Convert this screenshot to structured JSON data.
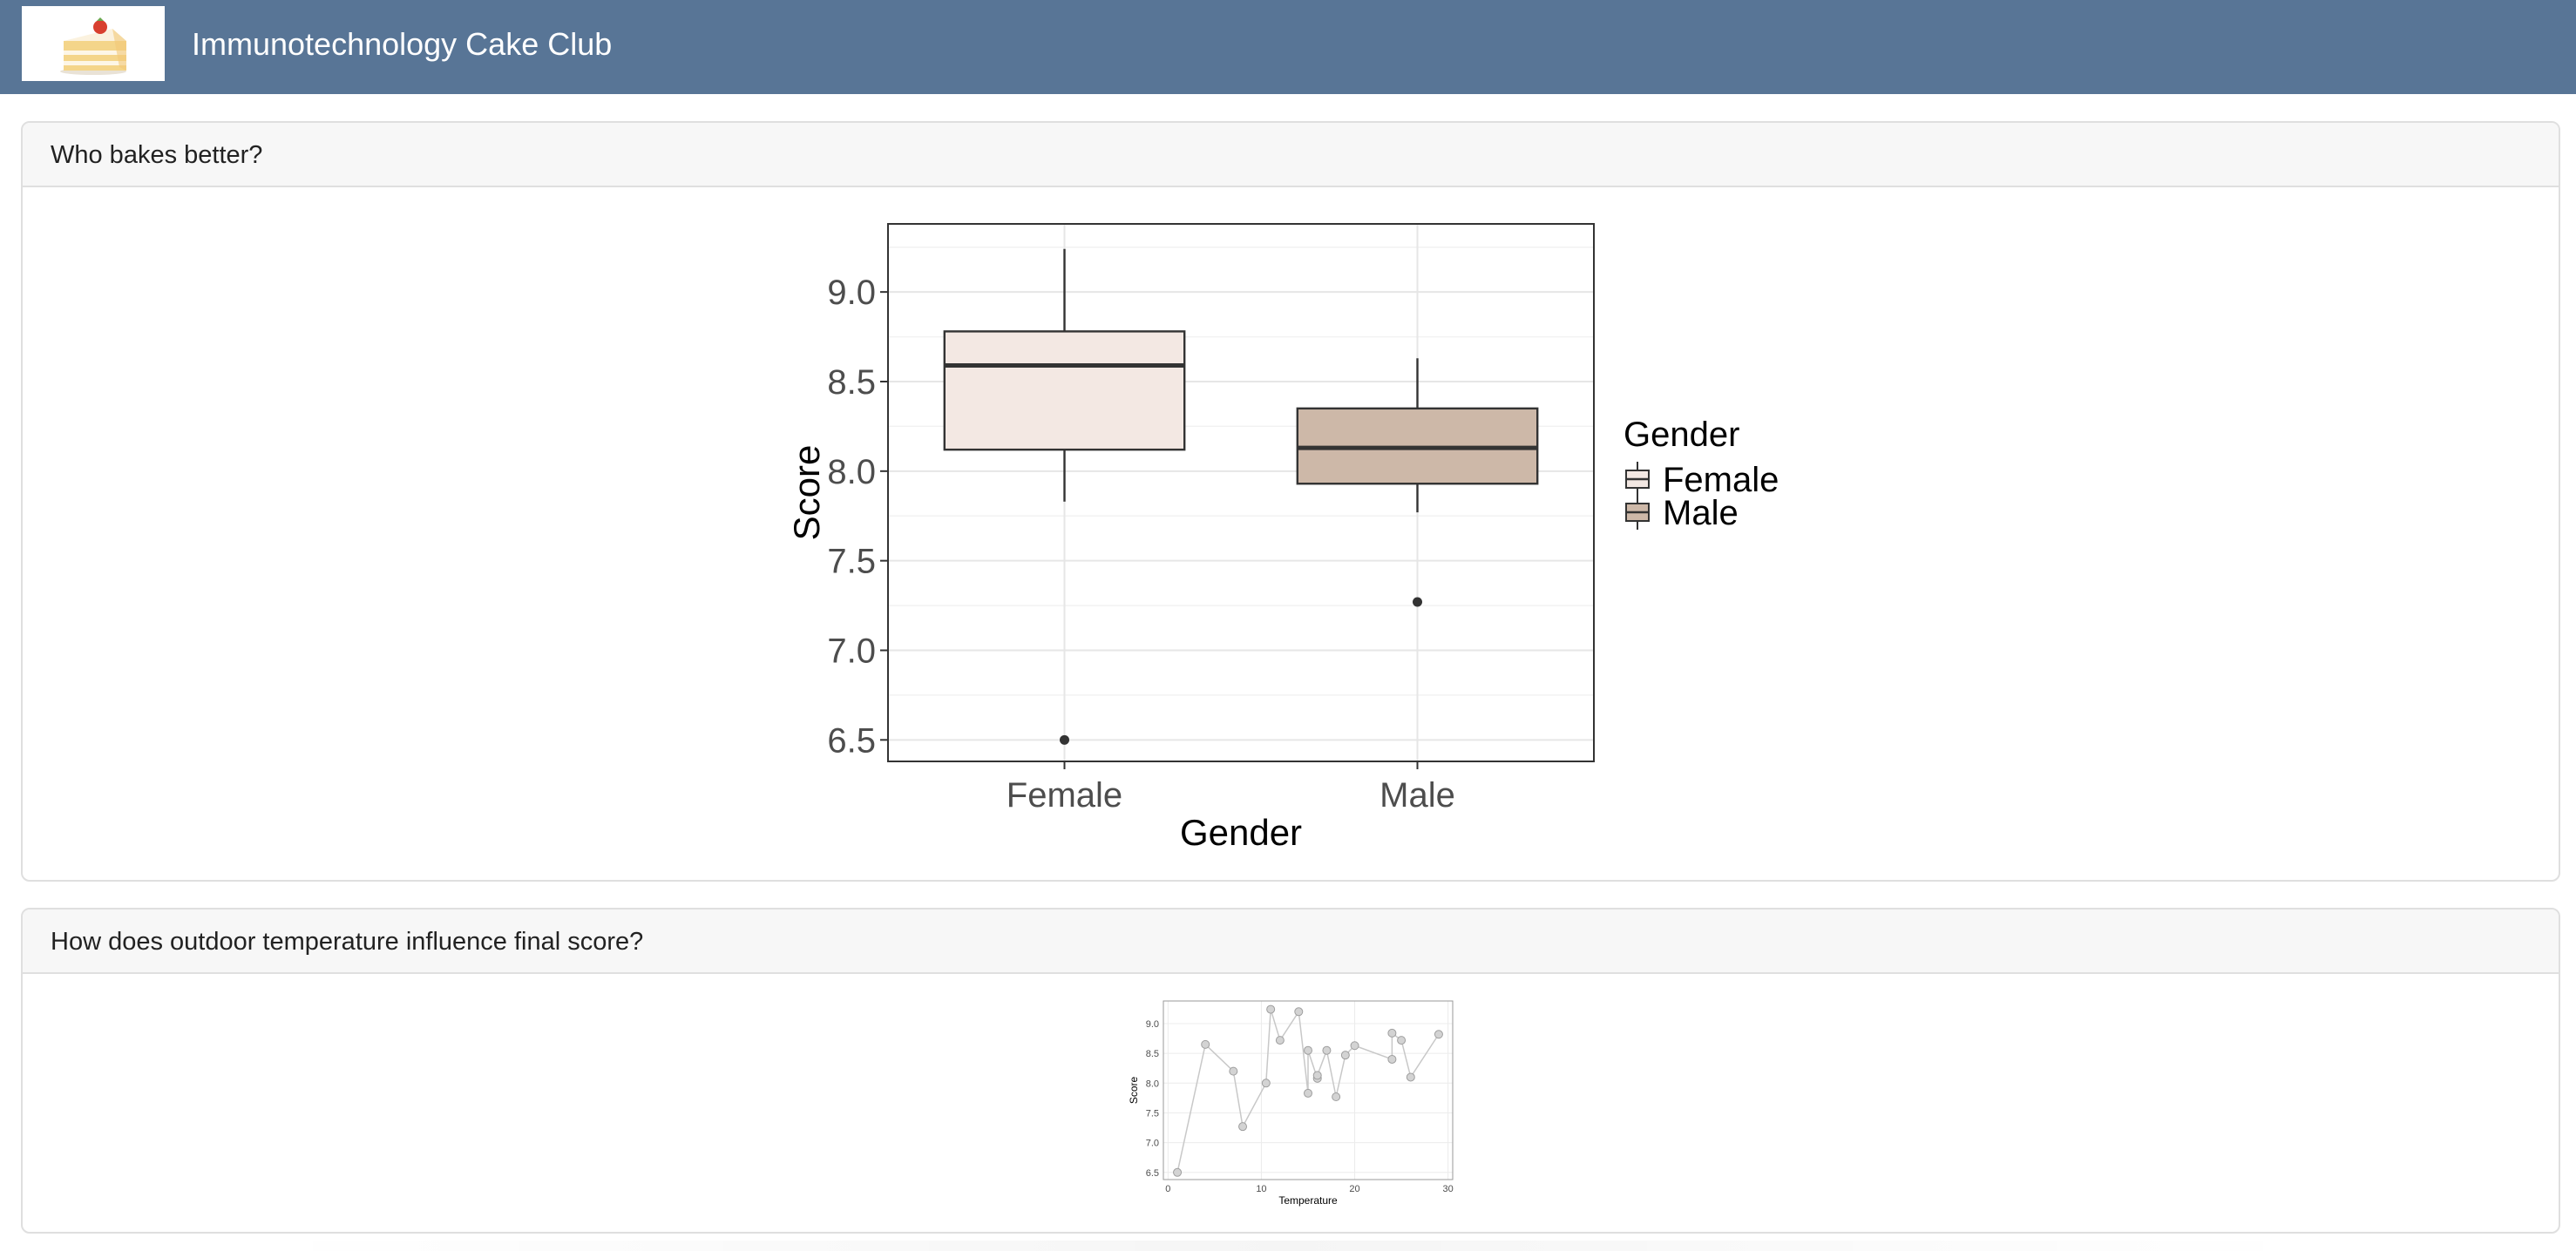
{
  "header": {
    "title": "Immunotechnology Cake Club",
    "logo_icon": "cake-icon",
    "bar_color": "#587596"
  },
  "cards": [
    {
      "title": "Who bakes better?"
    },
    {
      "title": "How does outdoor temperature influence final score?"
    }
  ],
  "chart_data": [
    {
      "type": "box",
      "xlabel": "Gender",
      "ylabel": "Score",
      "categories": [
        "Female",
        "Male"
      ],
      "ylim": [
        6.38,
        9.38
      ],
      "yticks": [
        "6.5",
        "7.0",
        "7.5",
        "8.0",
        "8.5",
        "9.0"
      ],
      "grid": true,
      "legend": {
        "title": "Gender",
        "placement": "right",
        "entries": [
          "Female",
          "Male"
        ]
      },
      "colors": {
        "Female": "#f3e8e3",
        "Male": "#cdb8a8"
      },
      "boxes": [
        {
          "name": "Female",
          "min": 7.83,
          "q1": 8.12,
          "median": 8.59,
          "q3": 8.78,
          "max": 9.24,
          "outliers": [
            6.5
          ]
        },
        {
          "name": "Male",
          "min": 7.77,
          "q1": 7.93,
          "median": 8.13,
          "q3": 8.35,
          "max": 8.63,
          "outliers": [
            7.27
          ]
        }
      ]
    },
    {
      "type": "line",
      "xlabel": "Temperature",
      "ylabel": "Score",
      "xlim": [
        -0.5,
        30.5
      ],
      "ylim": [
        6.38,
        9.38
      ],
      "xticks": [
        "0",
        "10",
        "20",
        "30"
      ],
      "yticks": [
        "6.5",
        "7.0",
        "7.5",
        "8.0",
        "8.5",
        "9.0"
      ],
      "grid": true,
      "points": [
        {
          "x": 1,
          "y": 6.5
        },
        {
          "x": 4,
          "y": 8.65
        },
        {
          "x": 7,
          "y": 8.2
        },
        {
          "x": 8,
          "y": 7.27
        },
        {
          "x": 10.5,
          "y": 8.0
        },
        {
          "x": 11,
          "y": 9.24
        },
        {
          "x": 12,
          "y": 8.72
        },
        {
          "x": 14,
          "y": 9.2
        },
        {
          "x": 15,
          "y": 7.83
        },
        {
          "x": 15,
          "y": 8.55
        },
        {
          "x": 16,
          "y": 8.08
        },
        {
          "x": 16,
          "y": 8.13
        },
        {
          "x": 17,
          "y": 8.55
        },
        {
          "x": 18,
          "y": 7.77
        },
        {
          "x": 19,
          "y": 8.47
        },
        {
          "x": 20,
          "y": 8.63
        },
        {
          "x": 24,
          "y": 8.4
        },
        {
          "x": 24,
          "y": 8.84
        },
        {
          "x": 25,
          "y": 8.72
        },
        {
          "x": 26,
          "y": 8.1
        },
        {
          "x": 29,
          "y": 8.82
        }
      ]
    }
  ]
}
